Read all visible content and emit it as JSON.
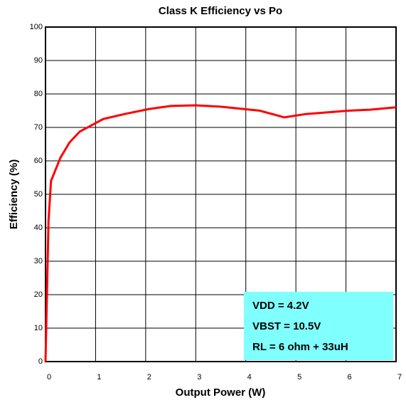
{
  "chart_data": {
    "type": "line",
    "title": "Class K Efficiency vs Po",
    "x_label": "Output Power (W)",
    "y_label": "Efficiency (%)",
    "x": [
      0,
      0.06,
      0.11,
      0.3,
      0.48,
      0.68,
      1.15,
      1.58,
      2.07,
      2.5,
      3.0,
      3.5,
      4.28,
      4.77,
      5.2,
      6.05,
      6.48,
      7.0
    ],
    "series": [
      {
        "name": "Efficiency",
        "color": "#ff0000",
        "values": [
          0,
          42,
          54,
          61,
          65.5,
          68.7,
          72.5,
          74,
          75.5,
          76.4,
          76.6,
          76.2,
          75,
          73,
          74,
          75,
          75.3,
          76
        ]
      }
    ],
    "xlim": [
      0,
      7
    ],
    "xticks": [
      0,
      1,
      2,
      3,
      4,
      5,
      6,
      7
    ],
    "ylim": [
      0,
      100
    ],
    "yticks": [
      0,
      10,
      20,
      30,
      40,
      50,
      60,
      70,
      80,
      90,
      100
    ],
    "grid": true,
    "annotations": [
      "VDD = 4.2V",
      "VBST = 10.5V",
      "RL = 6 ohm + 33uH"
    ],
    "annotation_color": "#80ffff"
  }
}
